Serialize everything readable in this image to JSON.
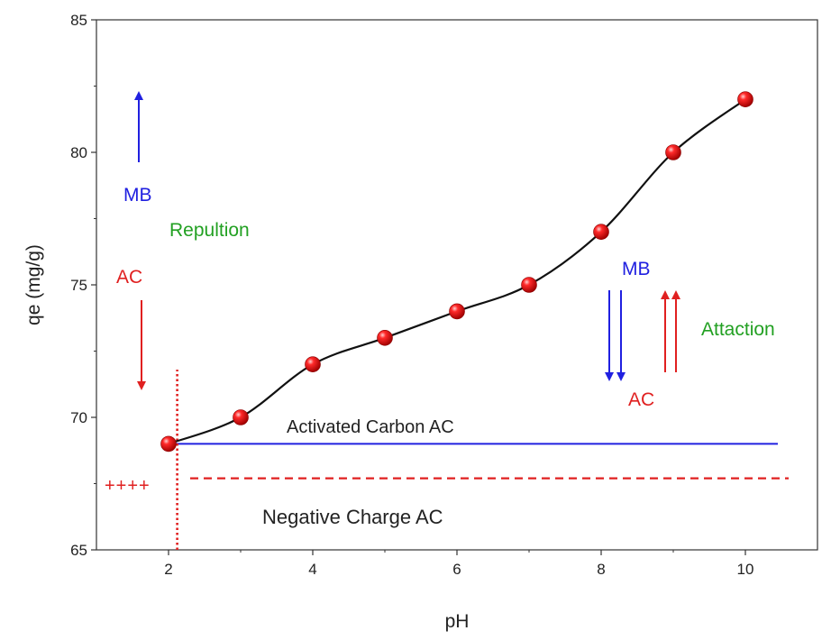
{
  "chart_data": {
    "type": "line",
    "xlabel": "pH",
    "ylabel": "qe (mg/g)",
    "xlim": [
      1.0,
      11.0
    ],
    "ylim": [
      65,
      85
    ],
    "xticks": [
      2,
      4,
      6,
      8,
      10
    ],
    "yticks": [
      65,
      70,
      75,
      80,
      85
    ],
    "series": [
      {
        "name": "qe",
        "color": "#e00000",
        "x": [
          2,
          3,
          4,
          5,
          6,
          7,
          8,
          9,
          10
        ],
        "y": [
          69,
          70,
          72,
          73,
          74,
          75,
          77,
          80,
          82
        ]
      }
    ],
    "reference_lines": [
      {
        "name": "activated-carbon-line",
        "type": "horizontal",
        "y": 69.0,
        "x_from": 2.0,
        "x_to": 10.45,
        "style": "solid",
        "color": "#2020e0"
      },
      {
        "name": "negative-charge-line",
        "type": "horizontal",
        "y": 67.7,
        "x_from": 2.3,
        "x_to": 10.6,
        "style": "dashed",
        "color": "#e02020"
      },
      {
        "name": "pzc-line",
        "type": "vertical",
        "x": 2.12,
        "y_from": 65,
        "y_to": 71.8,
        "style": "dotted",
        "color": "#e02020"
      }
    ],
    "annotations": [
      {
        "name": "mb-label-left",
        "text": "MB",
        "color": "#2020e0"
      },
      {
        "name": "repulsion-label",
        "text": "Repultion",
        "color": "#22a022"
      },
      {
        "name": "ac-label-left",
        "text": "AC",
        "color": "#e02020"
      },
      {
        "name": "mb-label-right",
        "text": "MB",
        "color": "#2020e0"
      },
      {
        "name": "attraction-label",
        "text": "Attaction",
        "color": "#22a022"
      },
      {
        "name": "ac-label-right",
        "text": "AC",
        "color": "#e02020"
      },
      {
        "name": "activated-carbon-label",
        "text": "Activated Carbon  AC",
        "color": "#222222"
      },
      {
        "name": "plus-signs-label",
        "text": "++++",
        "color": "#e02020"
      },
      {
        "name": "negative-charge-label",
        "text": "Negative Charge  AC",
        "color": "#222222"
      }
    ]
  }
}
